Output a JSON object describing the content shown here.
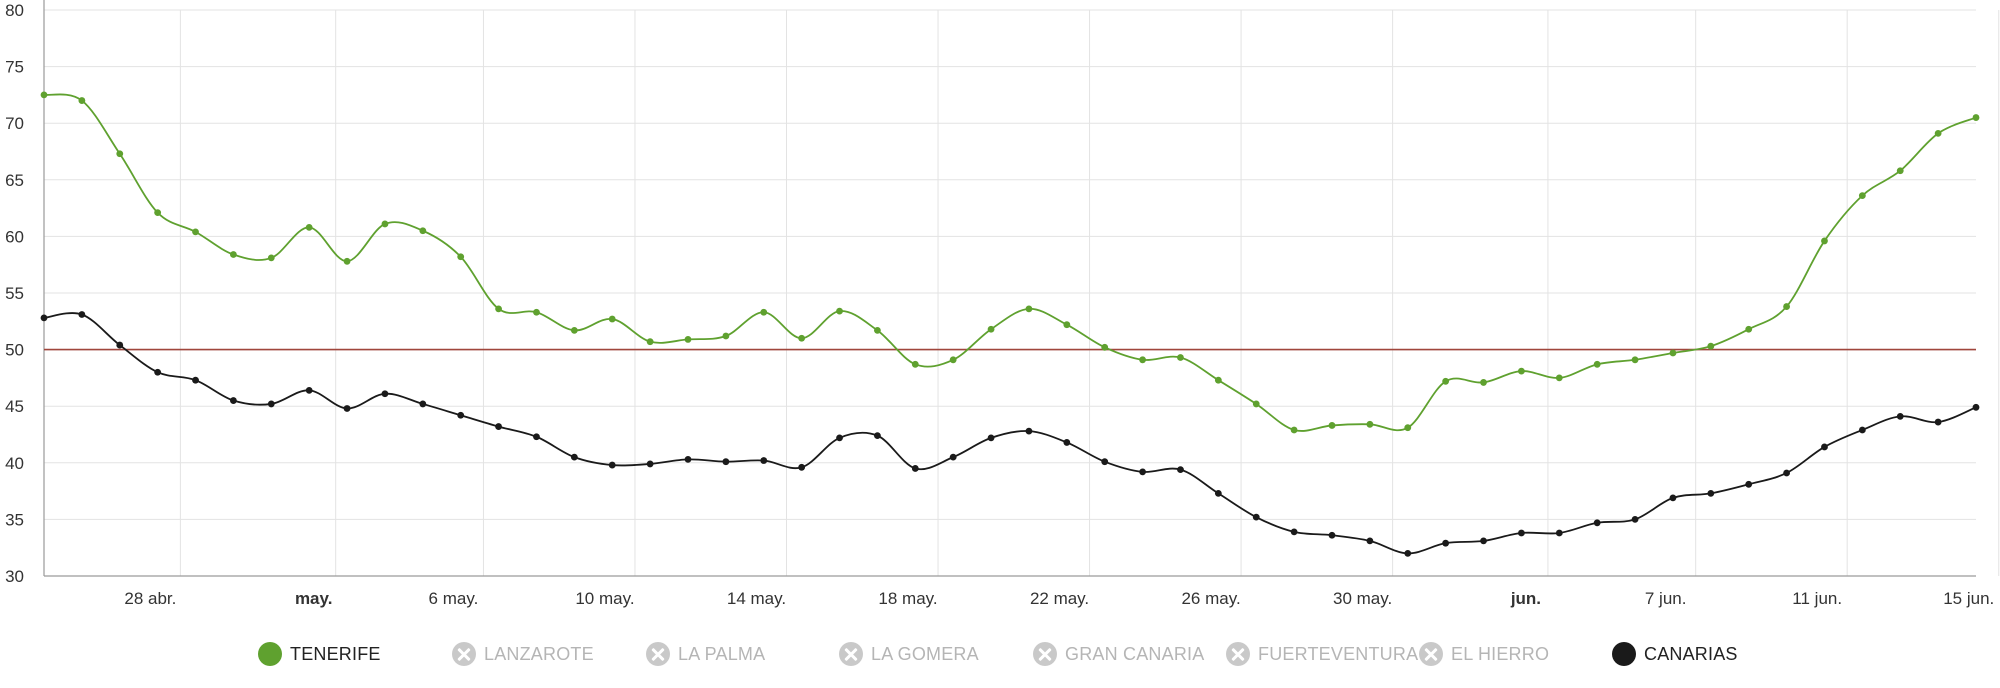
{
  "chart_data": {
    "type": "line",
    "title": "",
    "xlabel": "",
    "ylabel": "",
    "ylim": [
      30,
      80
    ],
    "yticks": [
      30,
      35,
      40,
      45,
      50,
      55,
      60,
      65,
      70,
      75,
      80
    ],
    "x_start": "24 abr.",
    "x_end": "15 jun.",
    "x_tick_labels": [
      {
        "label": "28 abr.",
        "day": 3.6,
        "bold": false
      },
      {
        "label": "may.",
        "day": 7.7,
        "bold": true
      },
      {
        "label": "6 may.",
        "day": 11.6,
        "bold": false
      },
      {
        "label": "10 may.",
        "day": 15.6,
        "bold": false
      },
      {
        "label": "14 may.",
        "day": 19.6,
        "bold": false
      },
      {
        "label": "18 may.",
        "day": 23.6,
        "bold": false
      },
      {
        "label": "22 may.",
        "day": 27.6,
        "bold": false
      },
      {
        "label": "26 may.",
        "day": 31.6,
        "bold": false
      },
      {
        "label": "30 may.",
        "day": 35.6,
        "bold": false
      },
      {
        "label": "jun.",
        "day": 39.7,
        "bold": true
      },
      {
        "label": "7 jun.",
        "day": 43.6,
        "bold": false
      },
      {
        "label": "11 jun.",
        "day": 47.6,
        "bold": false
      },
      {
        "label": "15 jun.",
        "day": 51.6,
        "bold": false
      }
    ],
    "reference_line": {
      "value": 50,
      "color": "#a0463c"
    },
    "grid": true,
    "series": [
      {
        "name": "TENERIFE",
        "color": "#5fa12f",
        "visible": true,
        "values": [
          72.5,
          72.0,
          67.3,
          62.1,
          60.4,
          58.4,
          58.1,
          60.8,
          57.8,
          61.1,
          60.5,
          58.2,
          53.6,
          53.3,
          51.7,
          52.7,
          50.7,
          50.9,
          51.2,
          53.3,
          51.0,
          53.4,
          51.7,
          48.7,
          49.1,
          51.8,
          53.6,
          52.2,
          50.2,
          49.1,
          49.3,
          47.3,
          45.2,
          42.9,
          43.3,
          43.4,
          43.1,
          47.2,
          47.1,
          48.1,
          47.5,
          48.7,
          49.1,
          49.7,
          50.3,
          51.8,
          53.8,
          59.6,
          63.6,
          65.8,
          69.1,
          70.5
        ]
      },
      {
        "name": "LANZAROTE",
        "color": "#c9c9c9",
        "visible": false,
        "values": []
      },
      {
        "name": "LA PALMA",
        "color": "#c9c9c9",
        "visible": false,
        "values": []
      },
      {
        "name": "LA GOMERA",
        "color": "#c9c9c9",
        "visible": false,
        "values": []
      },
      {
        "name": "GRAN CANARIA",
        "color": "#c9c9c9",
        "visible": false,
        "values": []
      },
      {
        "name": "FUERTEVENTURA",
        "color": "#c9c9c9",
        "visible": false,
        "values": []
      },
      {
        "name": "EL HIERRO",
        "color": "#c9c9c9",
        "visible": false,
        "values": []
      },
      {
        "name": "CANARIAS",
        "color": "#1a1a1a",
        "visible": true,
        "values": [
          52.8,
          53.1,
          50.4,
          48.0,
          47.3,
          45.5,
          45.2,
          46.4,
          44.8,
          46.1,
          45.2,
          44.2,
          43.2,
          42.3,
          40.5,
          39.8,
          39.9,
          40.3,
          40.1,
          40.2,
          39.6,
          42.2,
          42.4,
          39.5,
          40.5,
          42.2,
          42.8,
          41.8,
          40.1,
          39.2,
          39.4,
          37.3,
          35.2,
          33.9,
          33.6,
          33.1,
          32.0,
          32.9,
          33.1,
          33.8,
          33.8,
          34.7,
          35.0,
          36.9,
          37.3,
          38.1,
          39.1,
          41.4,
          42.9,
          44.1,
          43.6,
          44.9
        ]
      }
    ],
    "legend": [
      {
        "label": "TENERIFE",
        "visible": true,
        "color": "#5fa12f"
      },
      {
        "label": "LANZAROTE",
        "visible": false,
        "color": "#c9c9c9"
      },
      {
        "label": "LA PALMA",
        "visible": false,
        "color": "#c9c9c9"
      },
      {
        "label": "LA GOMERA",
        "visible": false,
        "color": "#c9c9c9"
      },
      {
        "label": "GRAN CANARIA",
        "visible": false,
        "color": "#c9c9c9"
      },
      {
        "label": "FUERTEVENTURA",
        "visible": false,
        "color": "#c9c9c9"
      },
      {
        "label": "EL HIERRO",
        "visible": false,
        "color": "#c9c9c9"
      },
      {
        "label": "CANARIAS",
        "visible": true,
        "color": "#1a1a1a"
      }
    ]
  }
}
